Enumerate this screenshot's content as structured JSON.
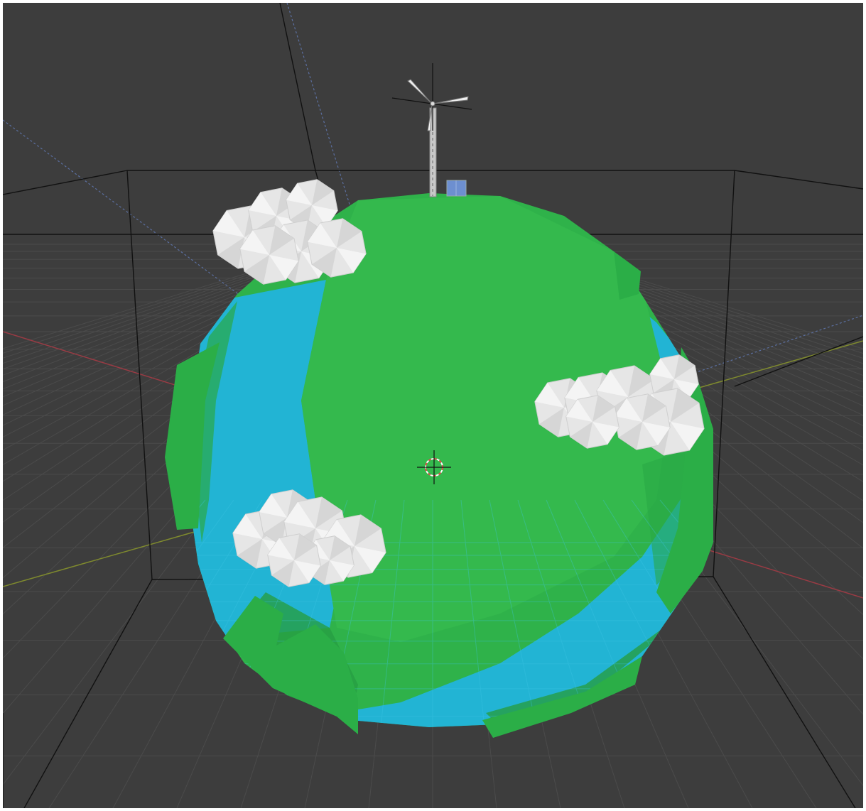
{
  "app": {
    "name": "",
    "view": "3D Viewport"
  },
  "scene": {
    "objects": [
      {
        "name": "planet",
        "icon": "low-poly-globe"
      },
      {
        "name": "wind-turbine",
        "icon": "wind-turbine-icon"
      },
      {
        "name": "solar-panel",
        "icon": "solar-panel-icon"
      },
      {
        "name": "cloud",
        "count": 3
      },
      {
        "name": "3d-cursor",
        "icon": "crosshair-icon"
      }
    ]
  },
  "colors": {
    "background": "#3d3d3d",
    "grid": "#4a4a4a",
    "land": "#2fb24a",
    "water": "#22b4d4",
    "cloud": "#e8e8e8",
    "x_axis": "#9a3b44",
    "y_axis": "#7f8a2e",
    "wire": "#101010",
    "camera_dashed": "#5b6fa0"
  }
}
